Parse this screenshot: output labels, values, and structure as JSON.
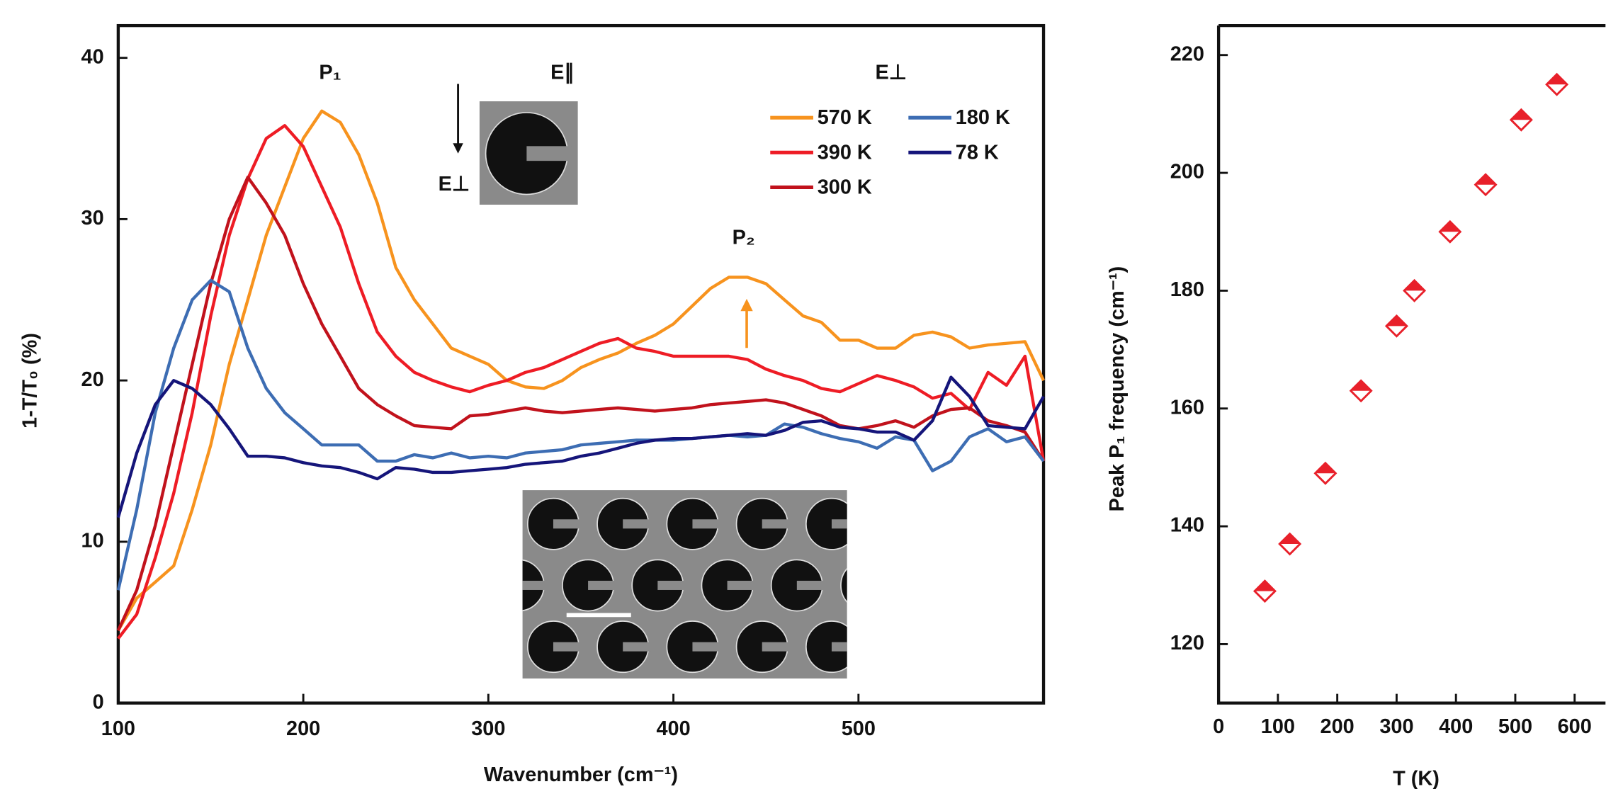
{
  "chart_data": [
    {
      "type": "line",
      "xlabel": "Wavenumber (cm⁻¹)",
      "ylabel": "1-T/T₀ (%)",
      "annotations": [
        "P₁",
        "P₂",
        "E∥",
        "E⊥",
        "E⊥"
      ],
      "xlim": [
        100,
        600
      ],
      "ylim": [
        0,
        42
      ],
      "xticks": [
        100,
        200,
        300,
        400,
        500
      ],
      "yticks": [
        0,
        10,
        20,
        30,
        40
      ],
      "x": [
        100,
        110,
        120,
        130,
        140,
        150,
        160,
        170,
        180,
        190,
        200,
        210,
        220,
        230,
        240,
        250,
        260,
        270,
        280,
        290,
        300,
        310,
        320,
        330,
        340,
        350,
        360,
        370,
        380,
        390,
        400,
        410,
        420,
        430,
        440,
        450,
        460,
        470,
        480,
        490,
        500,
        510,
        520,
        530,
        540,
        550,
        560,
        570,
        580,
        590,
        600
      ],
      "series": [
        {
          "name": "570 K",
          "color": "#f7931e",
          "values": [
            4.5,
            6.5,
            7.5,
            8.5,
            12,
            16,
            21,
            25,
            29,
            32,
            35,
            36.7,
            36,
            34,
            31,
            27,
            25,
            23.5,
            22,
            21.5,
            21,
            20,
            19.6,
            19.5,
            20,
            20.8,
            21.3,
            21.7,
            22.3,
            22.8,
            23.5,
            24.6,
            25.7,
            26.4,
            26.4,
            26,
            25,
            24,
            23.6,
            22.5,
            22.5,
            22,
            22,
            22.8,
            23,
            22.7,
            22,
            22.2,
            22.3,
            22.4,
            20
          ]
        },
        {
          "name": "390 K",
          "color": "#ee1c25",
          "values": [
            4,
            5.5,
            9,
            13,
            18,
            24,
            29,
            32.5,
            35,
            35.8,
            34.5,
            32,
            29.5,
            26,
            23,
            21.5,
            20.5,
            20,
            19.6,
            19.3,
            19.7,
            20,
            20.5,
            20.8,
            21.3,
            21.8,
            22.3,
            22.6,
            22,
            21.8,
            21.5,
            21.5,
            21.5,
            21.5,
            21.3,
            20.7,
            20.3,
            20,
            19.5,
            19.3,
            19.8,
            20.3,
            20,
            19.6,
            18.9,
            19.2,
            18.2,
            20.5,
            19.7,
            21.5,
            15
          ]
        },
        {
          "name": "300 K",
          "color": "#c1121c",
          "values": [
            4.5,
            7,
            11,
            16,
            21,
            26,
            30,
            32.6,
            31,
            29,
            26,
            23.5,
            21.5,
            19.5,
            18.5,
            17.8,
            17.2,
            17.1,
            17,
            17.8,
            17.9,
            18.1,
            18.3,
            18.1,
            18,
            18.1,
            18.2,
            18.3,
            18.2,
            18.1,
            18.2,
            18.3,
            18.5,
            18.6,
            18.7,
            18.8,
            18.6,
            18.2,
            17.8,
            17.2,
            17,
            17.2,
            17.5,
            17.1,
            17.8,
            18.2,
            18.3,
            17.5,
            17.2,
            16.8,
            15
          ]
        },
        {
          "name": "180 K",
          "color": "#3d6db3",
          "values": [
            7,
            12,
            18,
            22,
            25,
            26.2,
            25.5,
            22,
            19.5,
            18,
            17,
            16,
            16,
            16,
            15,
            15,
            15.4,
            15.2,
            15.5,
            15.2,
            15.3,
            15.2,
            15.5,
            15.6,
            15.7,
            16,
            16.1,
            16.2,
            16.3,
            16.3,
            16.3,
            16.4,
            16.5,
            16.6,
            16.5,
            16.6,
            17.3,
            17.1,
            16.7,
            16.4,
            16.2,
            15.8,
            16.5,
            16.3,
            14.4,
            15,
            16.5,
            17,
            16.2,
            16.5,
            15
          ]
        },
        {
          "name": "78 K",
          "color": "#15157a",
          "values": [
            11.5,
            15.5,
            18.5,
            20,
            19.5,
            18.5,
            17,
            15.3,
            15.3,
            15.2,
            14.9,
            14.7,
            14.6,
            14.3,
            13.9,
            14.6,
            14.5,
            14.3,
            14.3,
            14.4,
            14.5,
            14.6,
            14.8,
            14.9,
            15,
            15.3,
            15.5,
            15.8,
            16.1,
            16.3,
            16.4,
            16.4,
            16.5,
            16.6,
            16.7,
            16.6,
            16.9,
            17.4,
            17.5,
            17.1,
            17,
            16.8,
            16.8,
            16.3,
            17.5,
            20.2,
            19,
            17.2,
            17.1,
            17,
            19
          ]
        }
      ]
    },
    {
      "type": "scatter",
      "xlabel": "T (K)",
      "ylabel": "Peak P₁ frequency (cm⁻¹)",
      "color": "#e8202a",
      "xlim": [
        0,
        652
      ],
      "ylim": [
        110,
        225
      ],
      "xticks": [
        0,
        100,
        200,
        300,
        400,
        500,
        600
      ],
      "yticks": [
        120,
        140,
        160,
        180,
        200,
        220
      ],
      "x": [
        78,
        120,
        180,
        240,
        300,
        330,
        390,
        450,
        510,
        570
      ],
      "y": [
        129,
        137,
        149,
        163,
        174,
        180,
        190,
        198,
        209,
        215
      ]
    }
  ]
}
